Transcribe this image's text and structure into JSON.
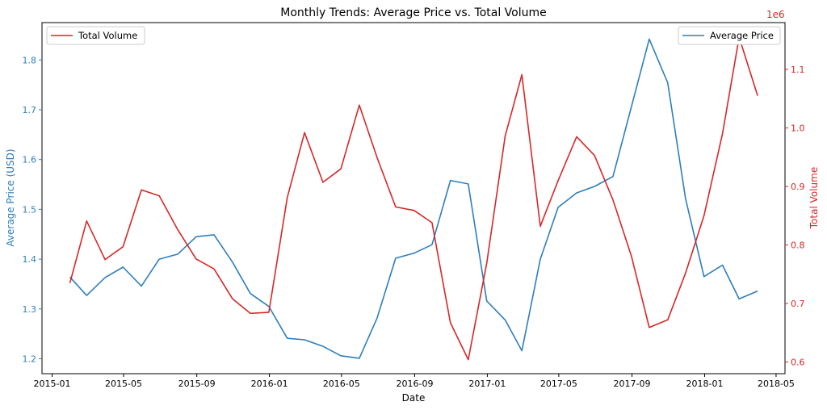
{
  "chart_data": {
    "type": "line",
    "title": "Monthly Trends: Average Price vs. Total Volume",
    "xlabel": "Date",
    "y1label": "Average Price (USD)",
    "y2label": "Total Volume",
    "y2_offset_text": "1e6",
    "xlim": [
      "2014-12-15",
      "2018-05-16"
    ],
    "ylim": [
      1.17,
      1.875
    ],
    "y2lim": [
      0.58,
      1.18
    ],
    "x_ticks": [
      "2015-01",
      "2015-05",
      "2015-09",
      "2016-01",
      "2016-05",
      "2016-09",
      "2017-01",
      "2017-05",
      "2017-09",
      "2018-01",
      "2018-05"
    ],
    "y1_ticks": [
      "1.2",
      "1.3",
      "1.4",
      "1.5",
      "1.6",
      "1.7",
      "1.8"
    ],
    "y2_ticks": [
      "0.6",
      "0.7",
      "0.8",
      "0.9",
      "1.0",
      "1.1"
    ],
    "x": [
      "2015-01-31",
      "2015-02-28",
      "2015-03-31",
      "2015-04-30",
      "2015-05-31",
      "2015-06-30",
      "2015-07-31",
      "2015-08-31",
      "2015-09-30",
      "2015-10-31",
      "2015-11-30",
      "2015-12-31",
      "2016-01-31",
      "2016-02-29",
      "2016-03-31",
      "2016-04-30",
      "2016-05-31",
      "2016-06-30",
      "2016-07-31",
      "2016-08-31",
      "2016-09-30",
      "2016-10-31",
      "2016-11-30",
      "2016-12-31",
      "2017-01-31",
      "2017-02-28",
      "2017-03-31",
      "2017-04-30",
      "2017-05-31",
      "2017-06-30",
      "2017-07-31",
      "2017-08-31",
      "2017-09-30",
      "2017-10-31",
      "2017-11-30",
      "2017-12-31",
      "2018-01-31",
      "2018-02-28",
      "2018-03-31"
    ],
    "series": [
      {
        "name": "Average Price",
        "axis": "left",
        "color": "#2e7ebc",
        "values": [
          1.364,
          1.327,
          1.363,
          1.384,
          1.346,
          1.4,
          1.41,
          1.445,
          1.449,
          1.394,
          1.331,
          1.305,
          1.241,
          1.238,
          1.225,
          1.206,
          1.201,
          1.282,
          1.402,
          1.412,
          1.429,
          1.558,
          1.551,
          1.316,
          1.278,
          1.216,
          1.4,
          1.504,
          1.533,
          1.546,
          1.566,
          1.706,
          1.842,
          1.754,
          1.521,
          1.365,
          1.388,
          1.32,
          1.336
        ]
      },
      {
        "name": "Total Volume",
        "axis": "right",
        "color": "#d62728",
        "values": [
          0.735,
          0.841,
          0.775,
          0.797,
          0.894,
          0.884,
          0.826,
          0.776,
          0.759,
          0.708,
          0.683,
          0.685,
          0.881,
          0.992,
          0.907,
          0.93,
          1.039,
          0.949,
          0.865,
          0.859,
          0.838,
          0.667,
          0.604,
          0.769,
          0.986,
          1.091,
          0.832,
          0.91,
          0.985,
          0.953,
          0.877,
          0.781,
          0.659,
          0.672,
          0.752,
          0.85,
          0.99,
          1.155,
          1.055
        ]
      }
    ],
    "legends": {
      "left": [
        "Total Volume"
      ],
      "right": [
        "Average Price"
      ]
    },
    "grid": false
  }
}
